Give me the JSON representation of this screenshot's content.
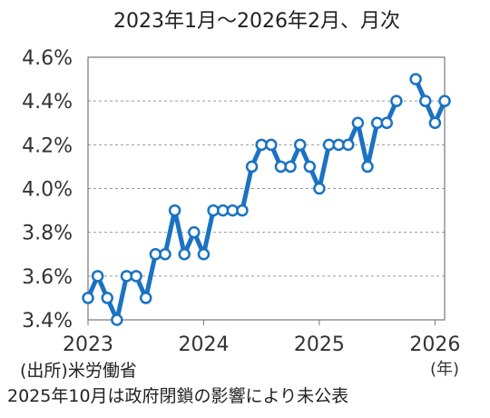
{
  "chart_data": {
    "type": "line",
    "title": "2023年1月～2026年2月、月次",
    "ylabel": "",
    "xlabel": "",
    "x_unit_label": "(年)",
    "ylim": [
      3.4,
      4.6
    ],
    "y_ticks": [
      "3.4%",
      "3.6%",
      "3.8%",
      "4.0%",
      "4.2%",
      "4.4%",
      "4.6%"
    ],
    "x_ticks": [
      "2023",
      "2024",
      "2025",
      "2026"
    ],
    "grid": "horizontal-dashed",
    "color": "#1a73c2",
    "series": [
      {
        "x": [
          "2023-01",
          "2023-02",
          "2023-03",
          "2023-04",
          "2023-05",
          "2023-06",
          "2023-07",
          "2023-08",
          "2023-09",
          "2023-10",
          "2023-11",
          "2023-12",
          "2024-01",
          "2024-02",
          "2024-03",
          "2024-04",
          "2024-05",
          "2024-06",
          "2024-07",
          "2024-08",
          "2024-09",
          "2024-10",
          "2024-11",
          "2024-12",
          "2025-01",
          "2025-02",
          "2025-03",
          "2025-04",
          "2025-05",
          "2025-06",
          "2025-07",
          "2025-08",
          "2025-09",
          "2025-10",
          "2025-11",
          "2025-12",
          "2026-01",
          "2026-02"
        ],
        "values": [
          3.5,
          3.6,
          3.5,
          3.4,
          3.6,
          3.6,
          3.5,
          3.7,
          3.7,
          3.9,
          3.7,
          3.8,
          3.7,
          3.9,
          3.9,
          3.9,
          3.9,
          4.1,
          4.2,
          4.2,
          4.1,
          4.1,
          4.2,
          4.1,
          4.0,
          4.2,
          4.2,
          4.2,
          4.3,
          4.1,
          4.3,
          4.3,
          4.4,
          null,
          4.5,
          4.4,
          4.3,
          4.4
        ]
      }
    ]
  },
  "source_note": "(出所)米労働省",
  "footnote": "2025年10月は政府閉鎖の影響により未公表"
}
